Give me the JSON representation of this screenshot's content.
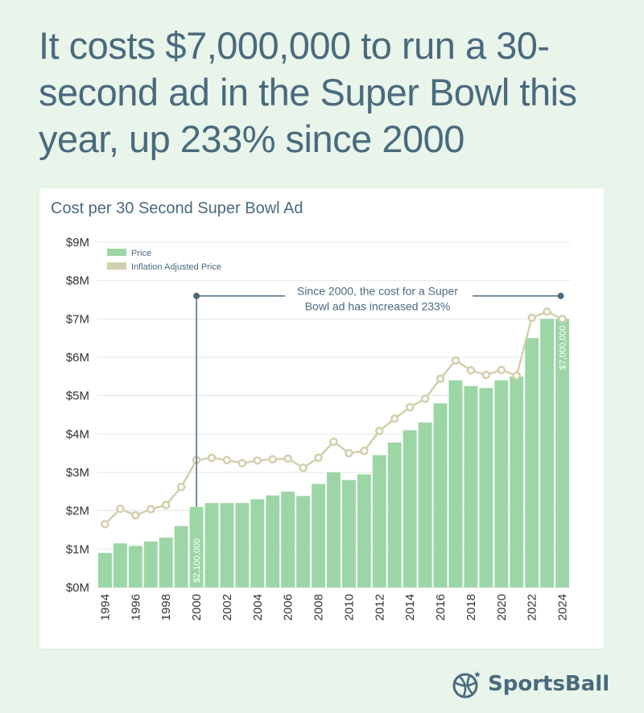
{
  "headline": "It costs $7,000,000 to run a 30-second ad in the Super Bowl this year, up 233% since 2000",
  "brand": {
    "name": "SportsBall",
    "icon": "basketball-icon"
  },
  "colors": {
    "price": "#9cd6a5",
    "inflation": "#d2cfae",
    "annotation": "#4a6a7e",
    "grid": "#e6e6e6"
  },
  "chart_data": {
    "type": "bar",
    "title": "Cost per 30 Second Super Bowl Ad",
    "xlabel": "",
    "ylabel": "",
    "ylim": [
      0,
      9000000
    ],
    "y_ticks": [
      {
        "value": 0,
        "label": "$0M"
      },
      {
        "value": 1000000,
        "label": "$1M"
      },
      {
        "value": 2000000,
        "label": "$2M"
      },
      {
        "value": 3000000,
        "label": "$3M"
      },
      {
        "value": 4000000,
        "label": "$4M"
      },
      {
        "value": 5000000,
        "label": "$5M"
      },
      {
        "value": 6000000,
        "label": "$6M"
      },
      {
        "value": 7000000,
        "label": "$7M"
      },
      {
        "value": 8000000,
        "label": "$8M"
      },
      {
        "value": 9000000,
        "label": "$9M"
      }
    ],
    "categories": [
      1994,
      1995,
      1996,
      1997,
      1998,
      1999,
      2000,
      2001,
      2002,
      2003,
      2004,
      2005,
      2006,
      2007,
      2008,
      2009,
      2010,
      2011,
      2012,
      2013,
      2014,
      2015,
      2016,
      2017,
      2018,
      2019,
      2020,
      2021,
      2022,
      2023,
      2024
    ],
    "x_tick_labels": [
      "1994",
      "",
      "1996",
      "",
      "1998",
      "",
      "2000",
      "",
      "2002",
      "",
      "2004",
      "",
      "2006",
      "",
      "2008",
      "",
      "2010",
      "",
      "2012",
      "",
      "2014",
      "",
      "2016",
      "",
      "2018",
      "",
      "2020",
      "",
      "2022",
      "",
      "2024"
    ],
    "grid": true,
    "legend_position": "top-left",
    "series": [
      {
        "name": "Price",
        "type": "bar",
        "values": [
          900000,
          1150000,
          1085000,
          1200000,
          1300000,
          1600000,
          2100000,
          2200000,
          2200000,
          2200000,
          2300000,
          2400000,
          2500000,
          2385000,
          2700000,
          3000000,
          2800000,
          2950000,
          3450000,
          3780000,
          4100000,
          4300000,
          4800000,
          5400000,
          5250000,
          5200000,
          5400000,
          5500000,
          6500000,
          7000000,
          7000000
        ]
      },
      {
        "name": "Inflation Adjusted Price",
        "type": "line",
        "values": [
          1650000,
          2050000,
          1880000,
          2040000,
          2150000,
          2620000,
          3320000,
          3380000,
          3320000,
          3240000,
          3310000,
          3340000,
          3360000,
          3120000,
          3380000,
          3800000,
          3500000,
          3560000,
          4080000,
          4400000,
          4700000,
          4920000,
          5440000,
          5920000,
          5660000,
          5540000,
          5670000,
          5520000,
          7030000,
          7190000,
          7000000
        ]
      }
    ],
    "data_labels": [
      {
        "category": 2000,
        "text": "$2,100,000"
      },
      {
        "category": 2024,
        "text": "$7,000,000"
      }
    ],
    "annotation": {
      "from": 2000,
      "to": 2024,
      "level": 7600000,
      "line1": "Since 2000, the cost for a Super",
      "line2": "Bowl ad has increased 233%"
    }
  }
}
